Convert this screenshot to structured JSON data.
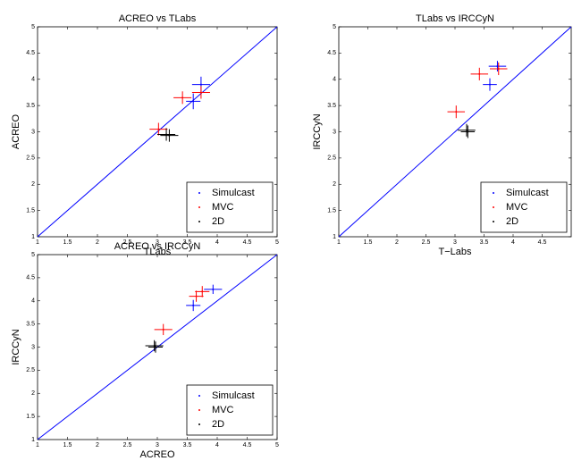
{
  "chart_data": [
    {
      "type": "scatter",
      "title": "ACREO vs TLabs",
      "x_label": "TLabs",
      "y_label": "ACREO",
      "xlim": [
        1,
        5
      ],
      "ylim": [
        1,
        5
      ],
      "xticks": [
        1,
        1.5,
        2,
        2.5,
        3,
        3.5,
        4,
        4.5,
        5
      ],
      "yticks": [
        1,
        1.5,
        2,
        2.5,
        3,
        3.5,
        4,
        4.5,
        5
      ],
      "legend": "lower right",
      "identity_line_color": "#0000ff",
      "series": [
        {
          "name": "Simulcast",
          "color": "#0000ff",
          "x": [
            3.73,
            3.6
          ],
          "values": [
            3.9,
            3.58
          ],
          "xerr": [
            0.15,
            0.12
          ],
          "yerr": [
            0.15,
            0.15
          ]
        },
        {
          "name": "MVC",
          "color": "#ff0000",
          "x": [
            3.42,
            3.73,
            3.02
          ],
          "values": [
            3.65,
            3.75,
            3.05
          ],
          "xerr": [
            0.15,
            0.15,
            0.15
          ],
          "yerr": [
            0.12,
            0.12,
            0.12
          ]
        },
        {
          "name": "2D",
          "color": "#000000",
          "x": [
            3.15,
            3.2
          ],
          "values": [
            2.95,
            2.93
          ],
          "xerr": [
            0.15,
            0.15
          ],
          "yerr": [
            0.12,
            0.12
          ]
        }
      ]
    },
    {
      "type": "scatter",
      "title": "TLabs vs IRCCyN",
      "x_label": "T−Labs",
      "y_label": "IRCCyN",
      "xlim": [
        1,
        5
      ],
      "ylim": [
        1,
        5
      ],
      "xticks": [
        1,
        1.5,
        2,
        2.5,
        3,
        3.5,
        4,
        4.5
      ],
      "yticks": [
        1,
        1.5,
        2,
        2.5,
        3,
        3.5,
        4,
        4.5,
        5
      ],
      "legend": "lower right",
      "identity_line_color": "#0000ff",
      "series": [
        {
          "name": "Simulcast",
          "color": "#0000ff",
          "x": [
            3.73,
            3.6
          ],
          "values": [
            4.25,
            3.9
          ],
          "xerr": [
            0.15,
            0.12
          ],
          "yerr": [
            0.1,
            0.12
          ]
        },
        {
          "name": "MVC",
          "color": "#ff0000",
          "x": [
            3.02,
            3.42,
            3.75
          ],
          "values": [
            3.38,
            4.1,
            4.2
          ],
          "xerr": [
            0.15,
            0.15,
            0.15
          ],
          "yerr": [
            0.12,
            0.12,
            0.12
          ]
        },
        {
          "name": "2D",
          "color": "#000000",
          "x": [
            3.2,
            3.22
          ],
          "values": [
            3.03,
            3.0
          ],
          "xerr": [
            0.15,
            0.12
          ],
          "yerr": [
            0.12,
            0.12
          ]
        }
      ]
    },
    {
      "type": "scatter",
      "title": "ACREO vs IRCCyN",
      "x_label": "ACREO",
      "y_label": "IRCCyN",
      "xlim": [
        1,
        5
      ],
      "ylim": [
        1,
        5
      ],
      "xticks": [
        1,
        1.5,
        2,
        2.5,
        3,
        3.5,
        4,
        4.5,
        5
      ],
      "yticks": [
        1,
        1.5,
        2,
        2.5,
        3,
        3.5,
        4,
        4.5,
        5
      ],
      "legend": "lower right",
      "identity_line_color": "#0000ff",
      "series": [
        {
          "name": "Simulcast",
          "color": "#0000ff",
          "x": [
            3.93,
            3.6
          ],
          "values": [
            4.25,
            3.9
          ],
          "xerr": [
            0.15,
            0.12
          ],
          "yerr": [
            0.1,
            0.12
          ]
        },
        {
          "name": "MVC",
          "color": "#ff0000",
          "x": [
            3.1,
            3.65,
            3.75
          ],
          "values": [
            3.38,
            4.1,
            4.2
          ],
          "xerr": [
            0.15,
            0.12,
            0.12
          ],
          "yerr": [
            0.12,
            0.12,
            0.12
          ]
        },
        {
          "name": "2D",
          "color": "#000000",
          "x": [
            2.95,
            2.97
          ],
          "values": [
            3.03,
            3.0
          ],
          "xerr": [
            0.15,
            0.12
          ],
          "yerr": [
            0.12,
            0.12
          ]
        }
      ]
    }
  ]
}
